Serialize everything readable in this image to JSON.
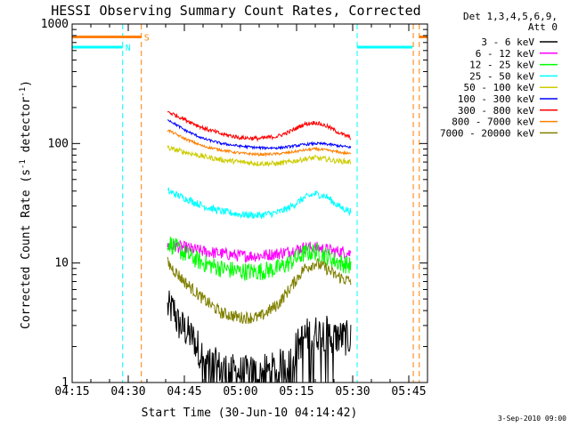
{
  "chart_data": {
    "type": "line",
    "title": "HESSI Observing Summary Count Rates, Corrected",
    "xlabel": "Start Time (30-Jun-10 04:14:42)",
    "ylabel": "Corrected Count Rate (s",
    "ylabel_sup1": "-1",
    "ylabel_mid": " detector",
    "ylabel_sup2": "-1",
    "ylabel_end": ")",
    "yscale": "log",
    "ylim": [
      1,
      1000
    ],
    "y_ticks": [
      {
        "value": 1,
        "label": "1"
      },
      {
        "value": 10,
        "label": "10"
      },
      {
        "value": 100,
        "label": "100"
      },
      {
        "value": 1000,
        "label": "1000"
      }
    ],
    "xlim_minutes": [
      0,
      95
    ],
    "x_ticks": [
      {
        "value": 0,
        "label": "04:15"
      },
      {
        "value": 15,
        "label": "04:30"
      },
      {
        "value": 30,
        "label": "04:45"
      },
      {
        "value": 45,
        "label": "05:00"
      },
      {
        "value": 60,
        "label": "05:15"
      },
      {
        "value": 75,
        "label": "05:30"
      },
      {
        "value": 90,
        "label": "05:45"
      }
    ],
    "legend_header": [
      "Det 1,3,4,5,6,9,",
      "Att 0"
    ],
    "legend_placement": "right",
    "series": [
      {
        "name": "3 - 6 keV",
        "color": "#000000",
        "noise": 0.35,
        "x": [
          25.5,
          27.5,
          28,
          30,
          33,
          35,
          40,
          45,
          50,
          55,
          58,
          62,
          64,
          68,
          70,
          72,
          74.5
        ],
        "values": [
          4.2,
          4.0,
          3.2,
          2.8,
          2.2,
          1.6,
          1.3,
          1.2,
          1.2,
          1.3,
          1.6,
          2.4,
          2.6,
          2.6,
          2.4,
          2.4,
          2.3
        ]
      },
      {
        "name": "6 - 12 keV",
        "color": "#ff00ff",
        "noise": 0.12,
        "x": [
          25.5,
          30,
          35,
          40,
          45,
          50,
          55,
          58,
          62,
          65,
          68,
          70,
          72,
          74.5
        ],
        "values": [
          14,
          13.5,
          12.5,
          12,
          11.5,
          11.5,
          12,
          12.5,
          13.5,
          13.5,
          13,
          12.5,
          12.5,
          12
        ]
      },
      {
        "name": "12 - 25 keV",
        "color": "#00ff00",
        "noise": 0.18,
        "x": [
          25.5,
          30,
          35,
          40,
          45,
          50,
          55,
          58,
          62,
          65,
          68,
          70,
          72,
          74.5
        ],
        "values": [
          15,
          12,
          10,
          9,
          8.5,
          8.5,
          9,
          10,
          12,
          12.5,
          11.5,
          10.5,
          10,
          9.5
        ]
      },
      {
        "name": "25 - 50 keV",
        "color": "#00ffff",
        "noise": 0.07,
        "x": [
          25.5,
          30,
          35,
          40,
          45,
          50,
          55,
          58,
          62,
          65,
          68,
          70,
          72,
          74.5
        ],
        "values": [
          40,
          35,
          30,
          27,
          25.5,
          25,
          26.5,
          29,
          35,
          38,
          36,
          32,
          29,
          27
        ]
      },
      {
        "name": "50 - 100 keV",
        "color": "#cccc00",
        "noise": 0.05,
        "x": [
          25.5,
          30,
          35,
          40,
          45,
          50,
          55,
          58,
          62,
          65,
          68,
          70,
          72,
          74.5
        ],
        "values": [
          92,
          85,
          78,
          73,
          70,
          68,
          68,
          70,
          74,
          76,
          74,
          72,
          71,
          70
        ]
      },
      {
        "name": "100 - 300 keV",
        "color": "#0000ff",
        "noise": 0.025,
        "x": [
          25.5,
          30,
          35,
          40,
          45,
          50,
          55,
          58,
          62,
          65,
          68,
          70,
          72,
          74.5
        ],
        "values": [
          160,
          130,
          110,
          100,
          95,
          92,
          92,
          94,
          98,
          100,
          99,
          97,
          95,
          93
        ]
      },
      {
        "name": "300 - 800 keV",
        "color": "#ff0000",
        "noise": 0.04,
        "x": [
          25.5,
          30,
          35,
          40,
          45,
          50,
          55,
          58,
          62,
          65,
          68,
          70,
          72,
          74.5
        ],
        "values": [
          185,
          160,
          135,
          120,
          112,
          110,
          115,
          125,
          145,
          150,
          140,
          130,
          120,
          112
        ]
      },
      {
        "name": "800 - 7000 keV",
        "color": "#ff8000",
        "noise": 0.025,
        "x": [
          25.5,
          30,
          35,
          40,
          45,
          50,
          55,
          58,
          62,
          65,
          68,
          70,
          72,
          74.5
        ],
        "values": [
          130,
          110,
          95,
          88,
          83,
          81,
          82,
          84,
          88,
          90,
          88,
          86,
          84,
          82
        ]
      },
      {
        "name": "7000 - 20000 keV",
        "color": "#808000",
        "noise": 0.12,
        "x": [
          25.5,
          30,
          35,
          40,
          45,
          50,
          55,
          58,
          62,
          65,
          68,
          70,
          72,
          74.5
        ],
        "values": [
          10,
          7,
          5,
          3.8,
          3.5,
          3.5,
          4.5,
          6,
          9,
          10,
          9,
          8,
          7.5,
          7
        ]
      }
    ],
    "status_segments": [
      {
        "label": "S",
        "color": "#ff8000",
        "level": 780,
        "ranges": [
          [
            0,
            18.5
          ],
          [
            92.8,
            95
          ]
        ]
      },
      {
        "label": "N",
        "color": "#00ffff",
        "level": 640,
        "ranges": [
          [
            0,
            13.5
          ],
          [
            76.2,
            91
          ]
        ]
      }
    ],
    "vertical_markers": [
      {
        "x": 13.5,
        "color": "#00ffff"
      },
      {
        "x": 18.5,
        "color": "#ff8000"
      },
      {
        "x": 76.2,
        "color": "#00ffff"
      },
      {
        "x": 91.2,
        "color": "#ff8000"
      },
      {
        "x": 92.8,
        "color": "#ff8000"
      }
    ],
    "date_stamp": "3-Sep-2010 09:00"
  }
}
